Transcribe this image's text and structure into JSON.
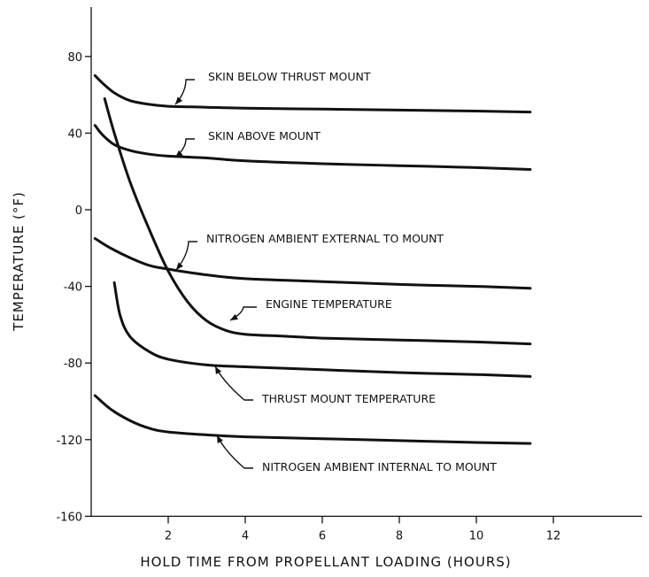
{
  "chart_data": {
    "type": "line",
    "xlabel": "HOLD TIME FROM PROPELLANT LOADING (HOURS)",
    "ylabel": "TEMPERATURE (°F)",
    "xlim": [
      0,
      14
    ],
    "ylim": [
      -160,
      100
    ],
    "xticks": [
      2,
      4,
      6,
      8,
      10,
      12
    ],
    "yticks": [
      80,
      40,
      0,
      -40,
      -80,
      -120,
      -160
    ],
    "grid": false,
    "legend": "none",
    "series": [
      {
        "name": "SKIN BELOW THRUST MOUNT",
        "x": [
          0.1,
          0.3,
          0.6,
          1.0,
          1.5,
          2.0,
          3.0,
          4.0,
          6.0,
          8.0,
          10.0,
          11.4
        ],
        "y": [
          70,
          66,
          61,
          57,
          55,
          54,
          53.5,
          53,
          52.5,
          52,
          51.5,
          51
        ]
      },
      {
        "name": "SKIN ABOVE MOUNT",
        "x": [
          0.1,
          0.3,
          0.6,
          1.0,
          1.5,
          2.0,
          3.0,
          4.0,
          6.0,
          8.0,
          10.0,
          11.4
        ],
        "y": [
          44,
          39,
          34,
          31,
          29,
          28,
          27,
          25.5,
          24,
          23,
          22,
          21
        ]
      },
      {
        "name": "NITROGEN AMBIENT EXTERNAL TO MOUNT",
        "x": [
          0.1,
          0.5,
          1.0,
          1.5,
          2.0,
          3.0,
          4.0,
          6.0,
          8.0,
          10.0,
          11.4
        ],
        "y": [
          -15,
          -20,
          -25,
          -29,
          -31,
          -34,
          -36,
          -37.5,
          -39,
          -40,
          -41
        ]
      },
      {
        "name": "ENGINE TEMPERATURE",
        "x": [
          0.35,
          0.6,
          1.0,
          1.5,
          2.0,
          2.5,
          3.0,
          3.5,
          4.0,
          5.0,
          6.0,
          8.0,
          10.0,
          11.4
        ],
        "y": [
          58,
          40,
          15,
          -10,
          -32,
          -48,
          -58,
          -63,
          -65,
          -66,
          -67,
          -68,
          -69,
          -70
        ]
      },
      {
        "name": "THRUST MOUNT TEMPERATURE",
        "x": [
          0.6,
          0.75,
          1.0,
          1.5,
          2.0,
          3.0,
          4.0,
          6.0,
          8.0,
          10.0,
          11.4
        ],
        "y": [
          -38,
          -55,
          -66,
          -74,
          -78,
          -81,
          -82,
          -83.5,
          -85,
          -86,
          -87
        ]
      },
      {
        "name": "NITROGEN AMBIENT INTERNAL TO MOUNT",
        "x": [
          0.1,
          0.5,
          1.0,
          1.5,
          2.0,
          3.0,
          4.0,
          6.0,
          8.0,
          10.0,
          11.4
        ],
        "y": [
          -97,
          -104,
          -110,
          -114,
          -116,
          -117.5,
          -118.5,
          -119.5,
          -120.5,
          -121.5,
          -122
        ]
      }
    ],
    "annotations": [
      "SKIN BELOW THRUST MOUNT",
      "SKIN ABOVE MOUNT",
      "NITROGEN AMBIENT EXTERNAL TO MOUNT",
      "ENGINE TEMPERATURE",
      "THRUST MOUNT TEMPERATURE",
      "NITROGEN AMBIENT INTERNAL TO MOUNT"
    ]
  }
}
